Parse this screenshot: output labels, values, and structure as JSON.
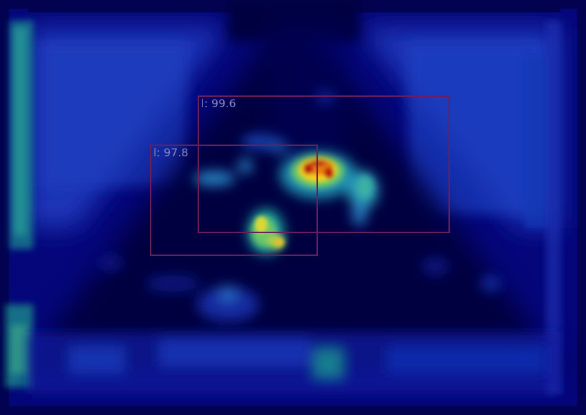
{
  "detections": [
    {
      "label": "l: 99.6",
      "color": "#6a1f5a"
    },
    {
      "label": "l: 97.8",
      "color": "#6a1f5a"
    }
  ],
  "colormap": "jet",
  "background_color": "#02024a"
}
